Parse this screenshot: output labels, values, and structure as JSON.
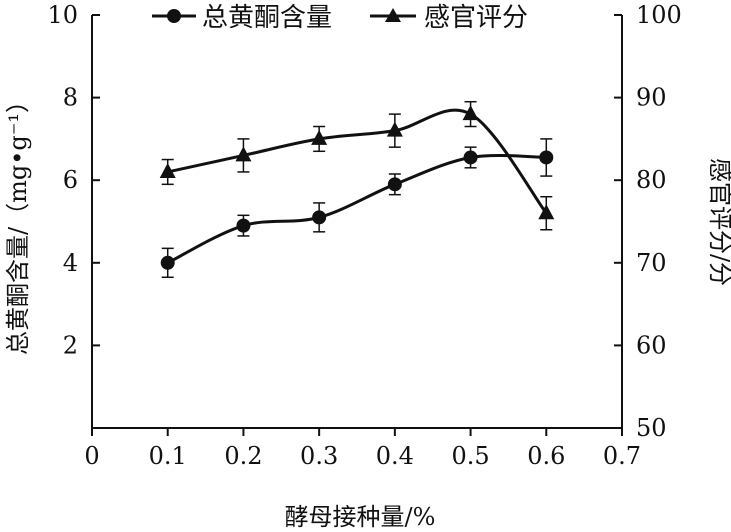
{
  "chart_data": {
    "type": "line",
    "xlabel": "酵母接种量/%",
    "ylabel_left": "总黄酮含量/（mg•g⁻¹）",
    "ylabel_right": "感官评分/分",
    "x_ticks": [
      "0",
      "0.1",
      "0.2",
      "0.3",
      "0.4",
      "0.5",
      "0.6",
      "0.7"
    ],
    "y_left_ticks": [
      "2",
      "4",
      "6",
      "8",
      "10"
    ],
    "y_right_ticks": [
      "50",
      "60",
      "70",
      "80",
      "90",
      "100"
    ],
    "xlim": [
      0,
      0.7
    ],
    "ylim_left": [
      0,
      10
    ],
    "ylim_right": [
      50,
      100
    ],
    "grid": false,
    "legend_position": "top-center",
    "x": [
      0.1,
      0.2,
      0.3,
      0.4,
      0.5,
      0.6
    ],
    "series": [
      {
        "name": "总黄酮含量",
        "axis": "left",
        "marker": "circle",
        "values": [
          4.0,
          4.9,
          5.1,
          5.9,
          6.55,
          6.55
        ],
        "errors": [
          0.35,
          0.25,
          0.35,
          0.25,
          0.25,
          0.45
        ]
      },
      {
        "name": "感官评分",
        "axis": "right",
        "marker": "triangle",
        "values": [
          81,
          83,
          85,
          86,
          88,
          76
        ],
        "errors": [
          1.5,
          2,
          1.5,
          2,
          1.5,
          2
        ]
      }
    ],
    "colors": {
      "line": "#111111",
      "background": "#ffffff"
    }
  }
}
